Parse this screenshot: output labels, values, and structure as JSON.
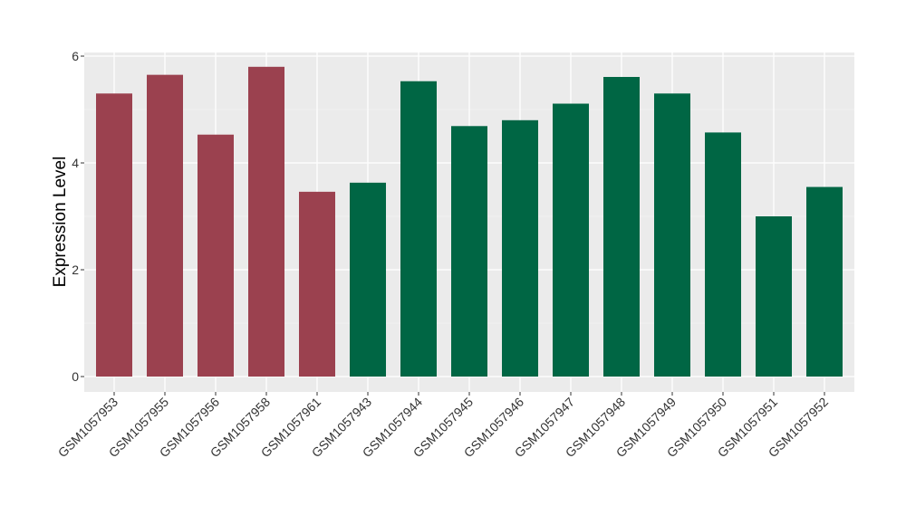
{
  "chart_data": {
    "type": "bar",
    "ylabel": "Expression Level",
    "xlabel": "",
    "ylim": [
      0,
      6
    ],
    "yticks": [
      0,
      2,
      4,
      6
    ],
    "grid": true,
    "panel_background": "#ebebeb",
    "group_colors": {
      "group1": "#9b414f",
      "group2": "#006644"
    },
    "categories": [
      "GSM1057953",
      "GSM1057955",
      "GSM1057956",
      "GSM1057958",
      "GSM1057961",
      "GSM1057943",
      "GSM1057944",
      "GSM1057945",
      "GSM1057946",
      "GSM1057947",
      "GSM1057948",
      "GSM1057949",
      "GSM1057950",
      "GSM1057951",
      "GSM1057952"
    ],
    "values": [
      5.3,
      5.65,
      4.53,
      5.8,
      3.46,
      3.63,
      5.53,
      4.69,
      4.8,
      5.11,
      5.61,
      5.3,
      4.57,
      3.0,
      3.55
    ],
    "groups": [
      "group1",
      "group1",
      "group1",
      "group1",
      "group1",
      "group2",
      "group2",
      "group2",
      "group2",
      "group2",
      "group2",
      "group2",
      "group2",
      "group2",
      "group2"
    ]
  }
}
